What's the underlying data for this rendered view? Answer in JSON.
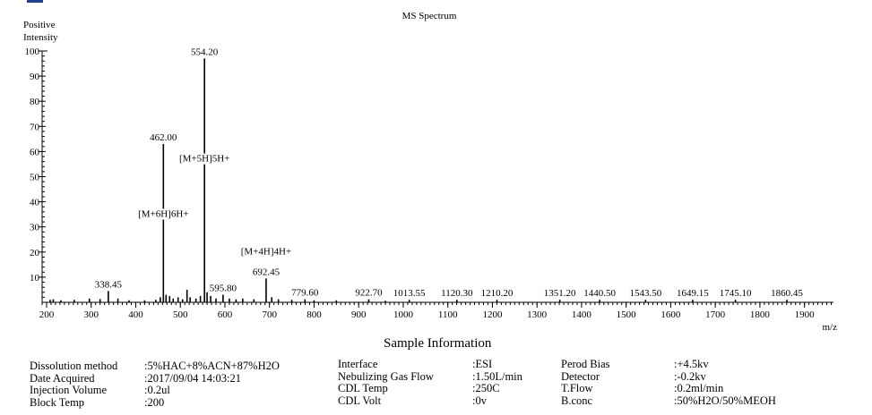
{
  "chart_data": {
    "type": "bar",
    "title": "MS Spectrum",
    "ylabel": "Positive Intensity",
    "xlabel": "m/z",
    "xlim": [
      190,
      1965
    ],
    "ylim": [
      0,
      100
    ],
    "x_ticks": [
      200,
      300,
      400,
      500,
      600,
      700,
      800,
      900,
      1000,
      1100,
      1200,
      1300,
      1400,
      1500,
      1600,
      1700,
      1800,
      1900
    ],
    "y_ticks": [
      10,
      20,
      30,
      40,
      50,
      60,
      70,
      80,
      90,
      100
    ],
    "peaks": [
      {
        "mz": 208,
        "intensity": 1.0
      },
      {
        "mz": 215,
        "intensity": 1.2
      },
      {
        "mz": 232,
        "intensity": 0.8
      },
      {
        "mz": 262,
        "intensity": 1.0
      },
      {
        "mz": 296,
        "intensity": 1.5
      },
      {
        "mz": 320,
        "intensity": 1.3
      },
      {
        "mz": 338.45,
        "intensity": 4.5
      },
      {
        "mz": 360,
        "intensity": 1.5
      },
      {
        "mz": 385,
        "intensity": 0.8
      },
      {
        "mz": 420,
        "intensity": 0.8
      },
      {
        "mz": 445,
        "intensity": 1.0
      },
      {
        "mz": 455,
        "intensity": 2.0
      },
      {
        "mz": 462.0,
        "intensity": 63
      },
      {
        "mz": 468,
        "intensity": 3.0
      },
      {
        "mz": 476,
        "intensity": 2.5
      },
      {
        "mz": 484,
        "intensity": 1.5
      },
      {
        "mz": 495,
        "intensity": 2.0
      },
      {
        "mz": 505,
        "intensity": 1.2
      },
      {
        "mz": 515,
        "intensity": 5.0
      },
      {
        "mz": 522,
        "intensity": 2.0
      },
      {
        "mz": 535,
        "intensity": 1.5
      },
      {
        "mz": 545,
        "intensity": 2.5
      },
      {
        "mz": 554.2,
        "intensity": 97
      },
      {
        "mz": 560,
        "intensity": 4.0
      },
      {
        "mz": 568,
        "intensity": 2.5
      },
      {
        "mz": 580,
        "intensity": 1.5
      },
      {
        "mz": 595.8,
        "intensity": 3.0
      },
      {
        "mz": 610,
        "intensity": 1.5
      },
      {
        "mz": 625,
        "intensity": 1.2
      },
      {
        "mz": 640,
        "intensity": 1.5
      },
      {
        "mz": 665,
        "intensity": 1.2
      },
      {
        "mz": 692.45,
        "intensity": 9.5
      },
      {
        "mz": 705,
        "intensity": 2.0
      },
      {
        "mz": 720,
        "intensity": 1.2
      },
      {
        "mz": 750,
        "intensity": 1.0
      },
      {
        "mz": 779.6,
        "intensity": 1.2
      },
      {
        "mz": 800,
        "intensity": 0.8
      },
      {
        "mz": 850,
        "intensity": 0.8
      },
      {
        "mz": 922.7,
        "intensity": 1.2
      },
      {
        "mz": 960,
        "intensity": 0.6
      },
      {
        "mz": 1013.55,
        "intensity": 1.0
      },
      {
        "mz": 1120.3,
        "intensity": 1.0
      },
      {
        "mz": 1210.2,
        "intensity": 1.0
      },
      {
        "mz": 1351.2,
        "intensity": 1.0
      },
      {
        "mz": 1440.5,
        "intensity": 1.0
      },
      {
        "mz": 1543.5,
        "intensity": 1.0
      },
      {
        "mz": 1649.15,
        "intensity": 1.0
      },
      {
        "mz": 1745.1,
        "intensity": 1.0
      },
      {
        "mz": 1860.45,
        "intensity": 1.0
      }
    ],
    "peak_labels": [
      {
        "mz": 338.45,
        "intensity": 4.5,
        "text": "338.45"
      },
      {
        "mz": 462.0,
        "intensity": 63,
        "text": "462.00"
      },
      {
        "mz": 554.2,
        "intensity": 97,
        "text": "554.20"
      },
      {
        "mz": 595.8,
        "intensity": 3.0,
        "text": "595.80"
      },
      {
        "mz": 692.45,
        "intensity": 9.5,
        "text": "692.45"
      },
      {
        "mz": 779.6,
        "intensity": 1.2,
        "text": "779.60"
      },
      {
        "mz": 922.7,
        "intensity": 1.2,
        "text": "922.70"
      },
      {
        "mz": 1013.55,
        "intensity": 1.0,
        "text": "1013.55"
      },
      {
        "mz": 1120.3,
        "intensity": 1.0,
        "text": "1120.30"
      },
      {
        "mz": 1210.2,
        "intensity": 1.0,
        "text": "1210.20"
      },
      {
        "mz": 1351.2,
        "intensity": 1.0,
        "text": "1351.20"
      },
      {
        "mz": 1440.5,
        "intensity": 1.0,
        "text": "1440.50"
      },
      {
        "mz": 1543.5,
        "intensity": 1.0,
        "text": "1543.50"
      },
      {
        "mz": 1649.15,
        "intensity": 1.0,
        "text": "1649.15"
      },
      {
        "mz": 1745.1,
        "intensity": 1.0,
        "text": "1745.10"
      },
      {
        "mz": 1860.45,
        "intensity": 1.0,
        "text": "1860.45"
      }
    ],
    "annotations": [
      {
        "mz": 554.2,
        "intensity": 56,
        "text": "[M+5H]5H+"
      },
      {
        "mz": 462.0,
        "intensity": 34,
        "text": "[M+6H]6H+"
      },
      {
        "mz": 692.45,
        "intensity": 19,
        "text": "[M+4H]4H+"
      }
    ]
  },
  "sample_info": {
    "title": "Sample Information",
    "col1": [
      {
        "key": "Dissolution method",
        "value": ":5%HAC+8%ACN+87%H2O"
      },
      {
        "key": "Date Acquired",
        "value": ":2017/09/04 14:03:21"
      },
      {
        "key": "Injection Volume",
        "value": ":0.2ul"
      },
      {
        "key": "Block Temp",
        "value": ":200"
      }
    ],
    "col2": [
      {
        "key": "Interface",
        "value": ":ESI"
      },
      {
        "key": "Nebulizing Gas Flow",
        "value": ":1.50L/min"
      },
      {
        "key": "CDL Temp",
        "value": ":250C"
      },
      {
        "key": "CDL Volt",
        "value": ":0v"
      }
    ],
    "col3": [
      {
        "key": "Perod Bias",
        "value": ":+4.5kv"
      },
      {
        "key": "Detector",
        "value": ":-0.2kv"
      },
      {
        "key": "T.Flow",
        "value": ":0.2ml/min"
      },
      {
        "key": "B.conc",
        "value": ":50%H2O/50%MEOH"
      }
    ]
  }
}
